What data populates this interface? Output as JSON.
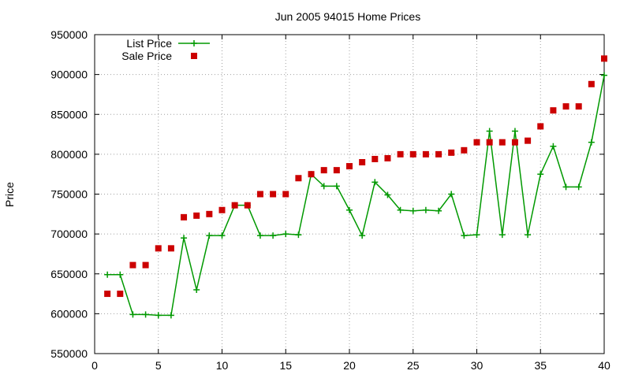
{
  "chart_data": {
    "type": "line",
    "title": "Jun 2005 94015 Home Prices",
    "xlabel": "",
    "ylabel": "Price",
    "xlim": [
      0,
      40
    ],
    "ylim": [
      550000,
      950000
    ],
    "x_ticks": [
      "0",
      "5",
      "10",
      "15",
      "20",
      "25",
      "30",
      "35",
      "40"
    ],
    "y_ticks": [
      "550000",
      "600000",
      "650000",
      "700000",
      "750000",
      "800000",
      "850000",
      "900000",
      "950000"
    ],
    "grid": true,
    "legend_position": "top-left",
    "x": [
      1,
      2,
      3,
      4,
      5,
      6,
      7,
      8,
      9,
      10,
      11,
      12,
      13,
      14,
      15,
      16,
      17,
      18,
      19,
      20,
      21,
      22,
      23,
      24,
      25,
      26,
      27,
      28,
      29,
      30,
      31,
      32,
      33,
      34,
      35,
      36,
      37,
      38,
      39,
      40
    ],
    "series": [
      {
        "name": "List Price",
        "style": "line-plus",
        "color": "#009900",
        "values": [
          649000,
          649000,
          599000,
          599000,
          598000,
          598000,
          695000,
          630000,
          698000,
          698000,
          736000,
          736000,
          698000,
          698000,
          700000,
          699000,
          775000,
          760000,
          760000,
          730000,
          698000,
          765000,
          749000,
          730000,
          729000,
          730000,
          729000,
          750000,
          698000,
          699000,
          829000,
          699000,
          829000,
          699000,
          775000,
          810000,
          759000,
          759000,
          815000,
          899000
        ]
      },
      {
        "name": "Sale Price",
        "style": "square-points",
        "color": "#cc0000",
        "values": [
          625000,
          625000,
          661000,
          661000,
          682000,
          682000,
          721000,
          723000,
          725000,
          730000,
          736000,
          736000,
          750000,
          750000,
          750000,
          770000,
          775000,
          780000,
          780000,
          785000,
          790000,
          794000,
          795000,
          800000,
          800000,
          800000,
          800000,
          802000,
          805000,
          815000,
          815000,
          815000,
          815000,
          817000,
          835000,
          855000,
          860000,
          860000,
          888000,
          920000
        ]
      }
    ]
  }
}
